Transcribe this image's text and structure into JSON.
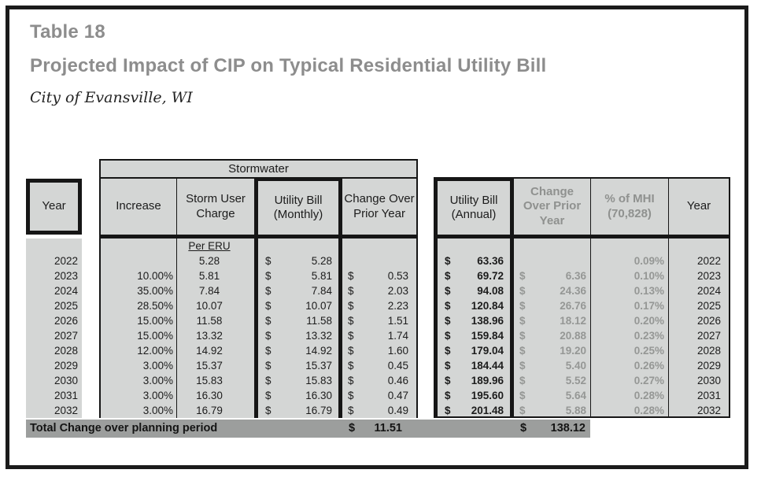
{
  "header": {
    "table_label": "Table 18",
    "title": "Projected Impact of CIP on Typical Residential Utility Bill",
    "subtitle": "City of Evansville, WI"
  },
  "table": {
    "group_header": "Stormwater",
    "currency": "$",
    "headers": {
      "year_left": "Year",
      "increase": "Increase",
      "storm_user_charge": "Storm User Charge",
      "bill_monthly": "Utility Bill (Monthly)",
      "change_monthly": "Change Over Prior Year",
      "bill_annual": "Utility Bill (Annual)",
      "change_annual": "Change Over Prior Year",
      "pct_mhi": "% of MHI (70,828)",
      "year_right": "Year"
    },
    "sub_header": "Per ERU",
    "rows": [
      {
        "year": "2022",
        "increase": "",
        "storm": "5.28",
        "bill_monthly": "5.28",
        "change_monthly": "",
        "bill_annual": "63.36",
        "change_annual": "",
        "pct_mhi": "0.09%"
      },
      {
        "year": "2023",
        "increase": "10.00%",
        "storm": "5.81",
        "bill_monthly": "5.81",
        "change_monthly": "0.53",
        "bill_annual": "69.72",
        "change_annual": "6.36",
        "pct_mhi": "0.10%"
      },
      {
        "year": "2024",
        "increase": "35.00%",
        "storm": "7.84",
        "bill_monthly": "7.84",
        "change_monthly": "2.03",
        "bill_annual": "94.08",
        "change_annual": "24.36",
        "pct_mhi": "0.13%"
      },
      {
        "year": "2025",
        "increase": "28.50%",
        "storm": "10.07",
        "bill_monthly": "10.07",
        "change_monthly": "2.23",
        "bill_annual": "120.84",
        "change_annual": "26.76",
        "pct_mhi": "0.17%"
      },
      {
        "year": "2026",
        "increase": "15.00%",
        "storm": "11.58",
        "bill_monthly": "11.58",
        "change_monthly": "1.51",
        "bill_annual": "138.96",
        "change_annual": "18.12",
        "pct_mhi": "0.20%"
      },
      {
        "year": "2027",
        "increase": "15.00%",
        "storm": "13.32",
        "bill_monthly": "13.32",
        "change_monthly": "1.74",
        "bill_annual": "159.84",
        "change_annual": "20.88",
        "pct_mhi": "0.23%"
      },
      {
        "year": "2028",
        "increase": "12.00%",
        "storm": "14.92",
        "bill_monthly": "14.92",
        "change_monthly": "1.60",
        "bill_annual": "179.04",
        "change_annual": "19.20",
        "pct_mhi": "0.25%"
      },
      {
        "year": "2029",
        "increase": "3.00%",
        "storm": "15.37",
        "bill_monthly": "15.37",
        "change_monthly": "0.45",
        "bill_annual": "184.44",
        "change_annual": "5.40",
        "pct_mhi": "0.26%"
      },
      {
        "year": "2030",
        "increase": "3.00%",
        "storm": "15.83",
        "bill_monthly": "15.83",
        "change_monthly": "0.46",
        "bill_annual": "189.96",
        "change_annual": "5.52",
        "pct_mhi": "0.27%"
      },
      {
        "year": "2031",
        "increase": "3.00%",
        "storm": "16.30",
        "bill_monthly": "16.30",
        "change_monthly": "0.47",
        "bill_annual": "195.60",
        "change_annual": "5.64",
        "pct_mhi": "0.28%"
      },
      {
        "year": "2032",
        "increase": "3.00%",
        "storm": "16.79",
        "bill_monthly": "16.79",
        "change_monthly": "0.49",
        "bill_annual": "201.48",
        "change_annual": "5.88",
        "pct_mhi": "0.28%"
      }
    ],
    "total": {
      "label": "Total Change over planning period",
      "change_monthly": "11.51",
      "change_annual": "138.12"
    }
  },
  "colors": {
    "cell_bg": "#d4d6d5",
    "total_row_bg": "#9c9e9d",
    "muted_text": "#959795",
    "title_text": "#8d8d8d",
    "border": "#161616"
  }
}
